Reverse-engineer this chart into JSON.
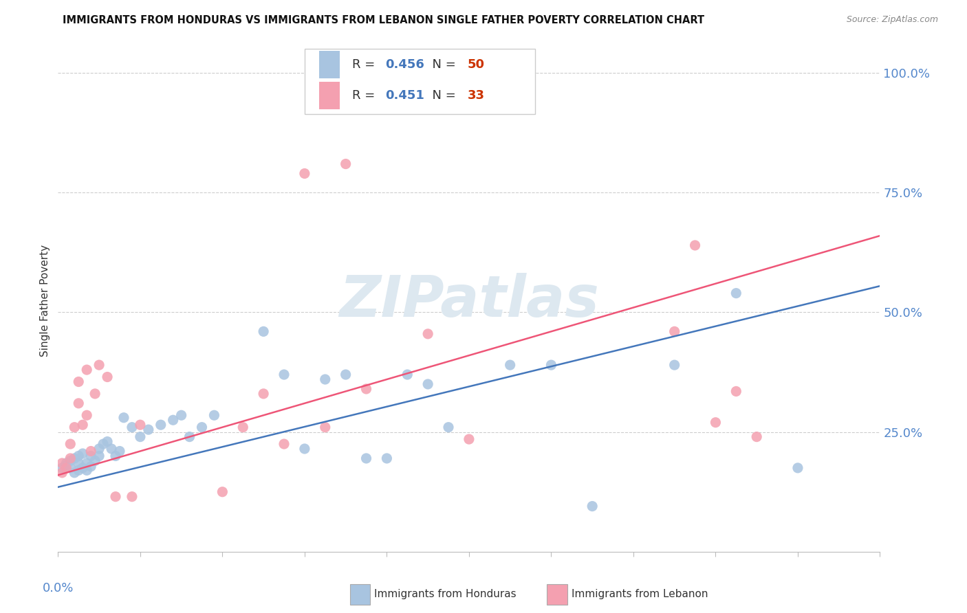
{
  "title": "IMMIGRANTS FROM HONDURAS VS IMMIGRANTS FROM LEBANON SINGLE FATHER POVERTY CORRELATION CHART",
  "source": "Source: ZipAtlas.com",
  "ylabel": "Single Father Poverty",
  "xlim": [
    0.0,
    0.2
  ],
  "ylim": [
    0.0,
    1.05
  ],
  "right_yticklabels": [
    "",
    "25.0%",
    "50.0%",
    "75.0%",
    "100.0%"
  ],
  "right_ytick_vals": [
    0.0,
    0.25,
    0.5,
    0.75,
    1.0
  ],
  "watermark": "ZIPatlas",
  "blue_color": "#a8c4e0",
  "pink_color": "#f4a0b0",
  "blue_line_color": "#4477bb",
  "pink_line_color": "#ee5577",
  "blue_r": "0.456",
  "blue_n": "50",
  "pink_r": "0.451",
  "pink_n": "33",
  "scatter_blue_x": [
    0.001,
    0.002,
    0.002,
    0.003,
    0.003,
    0.004,
    0.004,
    0.005,
    0.005,
    0.005,
    0.006,
    0.006,
    0.007,
    0.007,
    0.008,
    0.008,
    0.009,
    0.01,
    0.01,
    0.011,
    0.012,
    0.013,
    0.014,
    0.015,
    0.016,
    0.018,
    0.02,
    0.022,
    0.025,
    0.028,
    0.03,
    0.032,
    0.035,
    0.038,
    0.05,
    0.055,
    0.06,
    0.065,
    0.07,
    0.075,
    0.08,
    0.085,
    0.09,
    0.095,
    0.11,
    0.12,
    0.13,
    0.15,
    0.165,
    0.18
  ],
  "scatter_blue_y": [
    0.175,
    0.18,
    0.185,
    0.175,
    0.19,
    0.165,
    0.195,
    0.17,
    0.185,
    0.2,
    0.175,
    0.205,
    0.17,
    0.185,
    0.178,
    0.2,
    0.19,
    0.2,
    0.215,
    0.225,
    0.23,
    0.215,
    0.2,
    0.21,
    0.28,
    0.26,
    0.24,
    0.255,
    0.265,
    0.275,
    0.285,
    0.24,
    0.26,
    0.285,
    0.46,
    0.37,
    0.215,
    0.36,
    0.37,
    0.195,
    0.195,
    0.37,
    0.35,
    0.26,
    0.39,
    0.39,
    0.095,
    0.39,
    0.54,
    0.175
  ],
  "scatter_pink_x": [
    0.001,
    0.001,
    0.002,
    0.003,
    0.003,
    0.004,
    0.005,
    0.005,
    0.006,
    0.007,
    0.007,
    0.008,
    0.009,
    0.01,
    0.012,
    0.014,
    0.018,
    0.02,
    0.04,
    0.045,
    0.05,
    0.055,
    0.06,
    0.065,
    0.07,
    0.075,
    0.09,
    0.1,
    0.15,
    0.155,
    0.16,
    0.165,
    0.17
  ],
  "scatter_pink_y": [
    0.165,
    0.185,
    0.175,
    0.195,
    0.225,
    0.26,
    0.31,
    0.355,
    0.265,
    0.285,
    0.38,
    0.21,
    0.33,
    0.39,
    0.365,
    0.115,
    0.115,
    0.265,
    0.125,
    0.26,
    0.33,
    0.225,
    0.79,
    0.26,
    0.81,
    0.34,
    0.455,
    0.235,
    0.46,
    0.64,
    0.27,
    0.335,
    0.24
  ],
  "blue_trend_x": [
    0.0,
    0.2
  ],
  "blue_trend_y": [
    0.135,
    0.555
  ],
  "pink_trend_x": [
    0.0,
    0.2
  ],
  "pink_trend_y": [
    0.16,
    0.66
  ]
}
